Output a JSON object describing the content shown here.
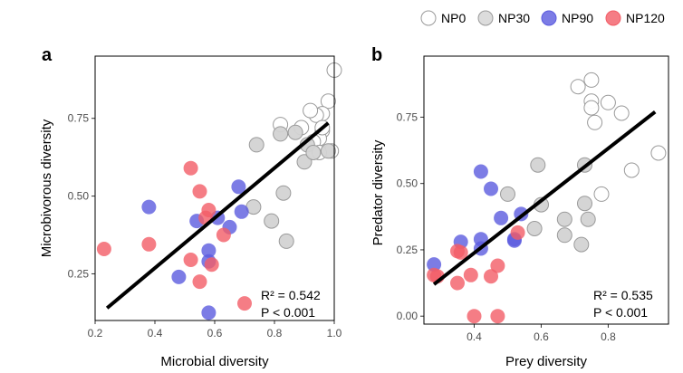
{
  "legend": [
    {
      "name": "NP0",
      "fill": "#ffffff",
      "stroke": "#9a9a9a"
    },
    {
      "name": "NP30",
      "fill": "#d3d3d3",
      "stroke": "#9a9a9a"
    },
    {
      "name": "NP90",
      "fill": "#5b5bdf",
      "stroke": "#5b5bdf"
    },
    {
      "name": "NP120",
      "fill": "#f25c66",
      "stroke": "#f25c66"
    }
  ],
  "chart_data": [
    {
      "type": "scatter",
      "panel": "a",
      "xlabel": "Microbial diversity",
      "ylabel": "Microbivorous diversity",
      "xlim": [
        0.2,
        1.0
      ],
      "ylim": [
        0.1,
        0.95
      ],
      "xticks": [
        "0.2",
        "0.4",
        "0.6",
        "0.8",
        "1.0"
      ],
      "xtick_values": [
        0.2,
        0.4,
        0.6,
        0.8,
        1.0
      ],
      "yticks": [
        "0.25",
        "0.50",
        "0.75"
      ],
      "ytick_values": [
        0.25,
        0.5,
        0.75
      ],
      "fit_line": [
        [
          0.24,
          0.14
        ],
        [
          0.98,
          0.735
        ]
      ],
      "stats": {
        "r2_label": "R² = 0.542",
        "p_label": "P < 0.001"
      },
      "series": [
        {
          "name": "NP0",
          "points": [
            [
              1.0,
              0.905
            ],
            [
              0.98,
              0.805
            ],
            [
              0.96,
              0.765
            ],
            [
              0.94,
              0.76
            ],
            [
              0.92,
              0.775
            ],
            [
              0.82,
              0.73
            ],
            [
              0.89,
              0.72
            ],
            [
              0.96,
              0.71
            ],
            [
              0.95,
              0.685
            ],
            [
              0.93,
              0.675
            ],
            [
              0.99,
              0.645
            ],
            [
              0.95,
              0.64
            ],
            [
              0.96,
              0.72
            ]
          ]
        },
        {
          "name": "NP30",
          "points": [
            [
              0.74,
              0.665
            ],
            [
              0.82,
              0.7
            ],
            [
              0.87,
              0.705
            ],
            [
              0.91,
              0.665
            ],
            [
              0.9,
              0.61
            ],
            [
              0.83,
              0.51
            ],
            [
              0.73,
              0.465
            ],
            [
              0.79,
              0.42
            ],
            [
              0.84,
              0.355
            ],
            [
              0.93,
              0.64
            ],
            [
              0.98,
              0.645
            ]
          ]
        },
        {
          "name": "NP90",
          "points": [
            [
              0.38,
              0.465
            ],
            [
              0.68,
              0.53
            ],
            [
              0.61,
              0.43
            ],
            [
              0.69,
              0.45
            ],
            [
              0.54,
              0.42
            ],
            [
              0.65,
              0.4
            ],
            [
              0.58,
              0.325
            ],
            [
              0.58,
              0.29
            ],
            [
              0.48,
              0.24
            ],
            [
              0.58,
              0.125
            ]
          ]
        },
        {
          "name": "NP120",
          "points": [
            [
              0.52,
              0.59
            ],
            [
              0.55,
              0.515
            ],
            [
              0.58,
              0.455
            ],
            [
              0.57,
              0.43
            ],
            [
              0.63,
              0.375
            ],
            [
              0.38,
              0.345
            ],
            [
              0.23,
              0.33
            ],
            [
              0.52,
              0.295
            ],
            [
              0.59,
              0.28
            ],
            [
              0.55,
              0.225
            ],
            [
              0.7,
              0.155
            ]
          ]
        }
      ]
    },
    {
      "type": "scatter",
      "panel": "b",
      "xlabel": "Prey diversity",
      "ylabel": "Predator diversity",
      "xlim": [
        0.25,
        0.98
      ],
      "ylim": [
        -0.03,
        0.98
      ],
      "xticks": [
        "0.4",
        "0.6",
        "0.8"
      ],
      "xtick_values": [
        0.4,
        0.6,
        0.8
      ],
      "yticks": [
        "0.00",
        "0.25",
        "0.50",
        "0.75"
      ],
      "ytick_values": [
        0.0,
        0.25,
        0.5,
        0.75
      ],
      "fit_line": [
        [
          0.28,
          0.12
        ],
        [
          0.94,
          0.77
        ]
      ],
      "stats": {
        "r2_label": "R² = 0.535",
        "p_label": "P < 0.001"
      },
      "series": [
        {
          "name": "NP0",
          "points": [
            [
              0.75,
              0.89
            ],
            [
              0.71,
              0.865
            ],
            [
              0.75,
              0.81
            ],
            [
              0.75,
              0.785
            ],
            [
              0.8,
              0.805
            ],
            [
              0.76,
              0.73
            ],
            [
              0.84,
              0.765
            ],
            [
              0.95,
              0.615
            ],
            [
              0.87,
              0.55
            ],
            [
              0.78,
              0.46
            ]
          ]
        },
        {
          "name": "NP30",
          "points": [
            [
              0.59,
              0.57
            ],
            [
              0.73,
              0.57
            ],
            [
              0.5,
              0.46
            ],
            [
              0.6,
              0.42
            ],
            [
              0.73,
              0.425
            ],
            [
              0.67,
              0.365
            ],
            [
              0.74,
              0.365
            ],
            [
              0.58,
              0.33
            ],
            [
              0.67,
              0.305
            ],
            [
              0.72,
              0.27
            ]
          ]
        },
        {
          "name": "NP90",
          "points": [
            [
              0.42,
              0.545
            ],
            [
              0.45,
              0.48
            ],
            [
              0.48,
              0.37
            ],
            [
              0.36,
              0.28
            ],
            [
              0.42,
              0.29
            ],
            [
              0.42,
              0.255
            ],
            [
              0.52,
              0.29
            ],
            [
              0.52,
              0.285
            ],
            [
              0.54,
              0.385
            ],
            [
              0.28,
              0.195
            ]
          ]
        },
        {
          "name": "NP120",
          "points": [
            [
              0.53,
              0.315
            ],
            [
              0.35,
              0.245
            ],
            [
              0.47,
              0.19
            ],
            [
              0.28,
              0.155
            ],
            [
              0.29,
              0.15
            ],
            [
              0.39,
              0.155
            ],
            [
              0.35,
              0.125
            ],
            [
              0.45,
              0.15
            ],
            [
              0.4,
              0.0
            ],
            [
              0.47,
              0.0
            ],
            [
              0.36,
              0.24
            ]
          ]
        }
      ]
    }
  ]
}
